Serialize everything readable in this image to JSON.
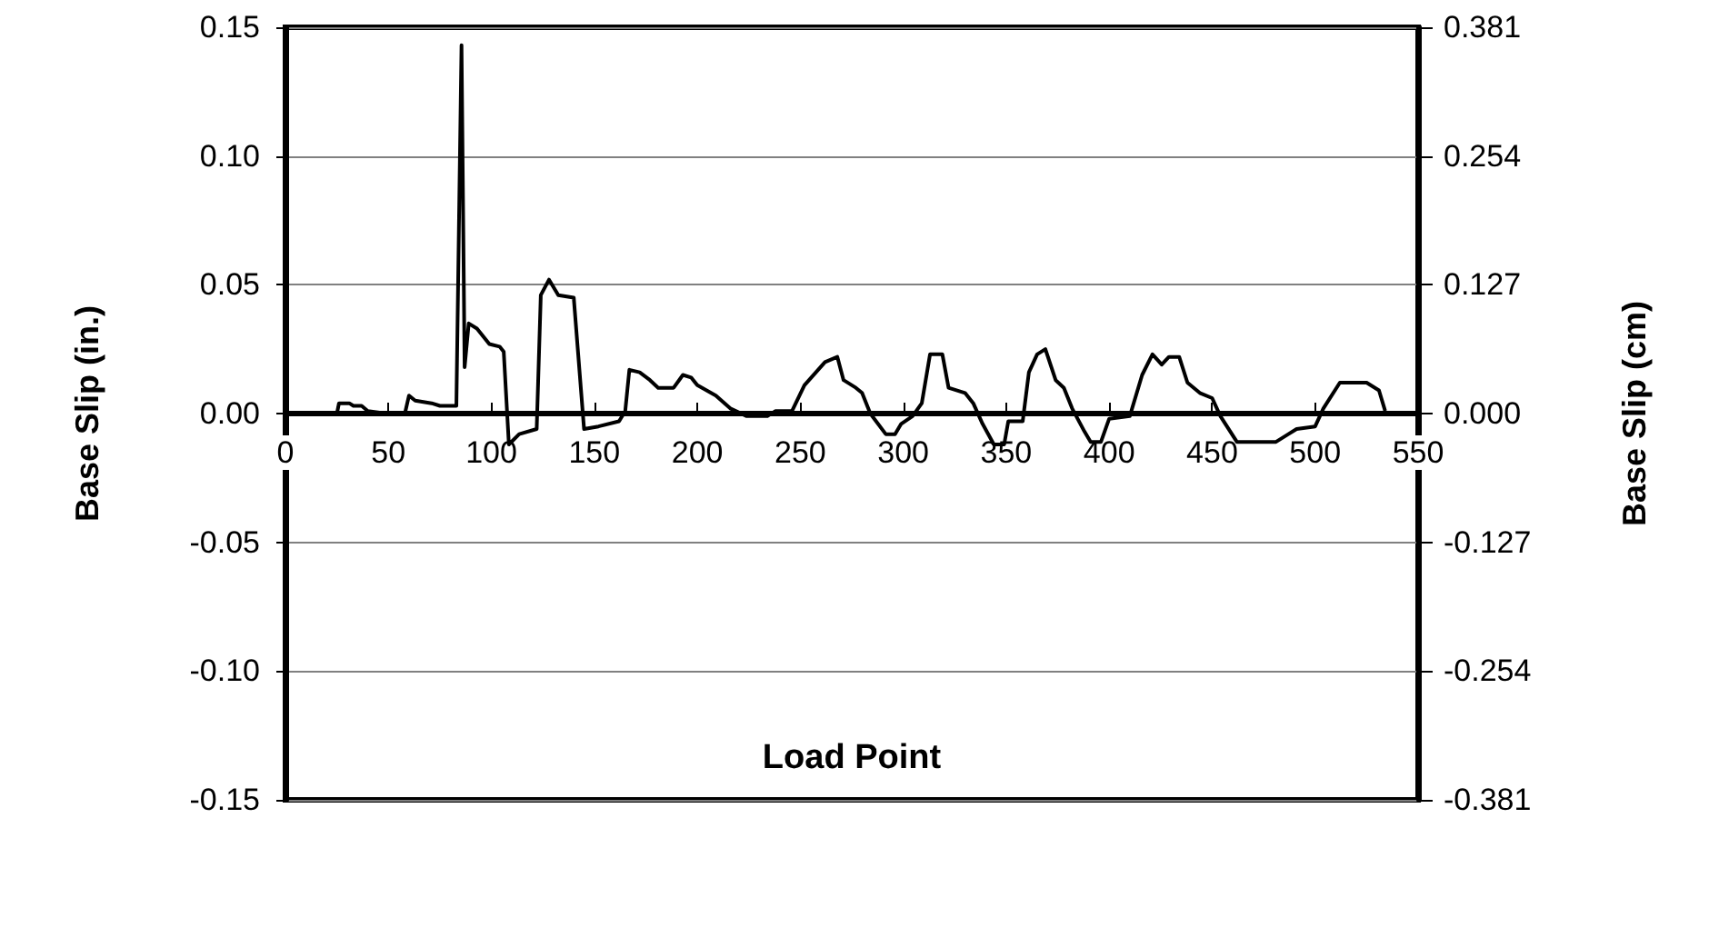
{
  "chart_data": {
    "type": "line",
    "xlabel": "Load Point",
    "ylabel": "Base Slip (in.)",
    "y2label": "Base Slip (cm)",
    "xlim": [
      0,
      550
    ],
    "xticks": [
      0,
      50,
      100,
      150,
      200,
      250,
      300,
      350,
      400,
      450,
      500,
      550
    ],
    "ylim": [
      -0.15,
      0.15
    ],
    "yticks": [
      {
        "value": -0.15,
        "label": "-0.15"
      },
      {
        "value": -0.1,
        "label": "-0.10"
      },
      {
        "value": -0.05,
        "label": "-0.05"
      },
      {
        "value": 0,
        "label": "0.00"
      },
      {
        "value": 0.05,
        "label": "0.05"
      },
      {
        "value": 0.1,
        "label": "0.10"
      },
      {
        "value": 0.15,
        "label": "0.15"
      }
    ],
    "y2lim": [
      -0.381,
      0.381
    ],
    "y2ticks": [
      -0.381,
      -0.254,
      -0.127,
      {
        "value": 0,
        "label": "0.000"
      },
      0.127,
      0.254,
      0.381
    ],
    "grid": "y",
    "marker": "none",
    "line_style": "solid",
    "series": [
      {
        "color": "#000000",
        "x": [
          2,
          25,
          26,
          31,
          33,
          37,
          40,
          49,
          58,
          60,
          63,
          71,
          75,
          78,
          83,
          85.5,
          87,
          89,
          93,
          99,
          104,
          106,
          108.5,
          113.5,
          122,
          124,
          128,
          132.5,
          140,
          145,
          152,
          162,
          165,
          167,
          172,
          177,
          181,
          188.5,
          193,
          197,
          200,
          209,
          216,
          224,
          234,
          238,
          246,
          252,
          262,
          268,
          271,
          277,
          280,
          284,
          291.5,
          296,
          299,
          304.5,
          309,
          313,
          319,
          322,
          330,
          334,
          338.5,
          344,
          349,
          351,
          358,
          361,
          365,
          369,
          374,
          378,
          382,
          388,
          391,
          396,
          400,
          410,
          416,
          421,
          425.5,
          429,
          434,
          438,
          444,
          450,
          454,
          462,
          481,
          487,
          491,
          500,
          504,
          512,
          525,
          531,
          534
        ],
        "values": [
          0,
          0,
          0.004,
          0.004,
          0.003,
          0.003,
          0.001,
          0,
          0,
          0.007,
          0.005,
          0.004,
          0.003,
          0.003,
          0.003,
          0.143,
          0.018,
          0.035,
          0.033,
          0.027,
          0.026,
          0.024,
          -0.012,
          -0.008,
          -0.006,
          0.046,
          0.052,
          0.046,
          0.045,
          -0.006,
          -0.005,
          -0.003,
          0.001,
          0.017,
          0.016,
          0.013,
          0.01,
          0.01,
          0.015,
          0.014,
          0.011,
          0.007,
          0.002,
          -0.001,
          -0.001,
          0.001,
          0.001,
          0.011,
          0.02,
          0.022,
          0.013,
          0.01,
          0.008,
          0,
          -0.008,
          -0.008,
          -0.004,
          -0.001,
          0.004,
          0.023,
          0.023,
          0.01,
          0.008,
          0.004,
          -0.004,
          -0.012,
          -0.012,
          -0.003,
          -0.003,
          0.016,
          0.023,
          0.025,
          0.013,
          0.01,
          0.002,
          -0.007,
          -0.011,
          -0.011,
          -0.002,
          -0.001,
          0.015,
          0.023,
          0.019,
          0.022,
          0.022,
          0.012,
          0.008,
          0.006,
          -0.001,
          -0.011,
          -0.011,
          -0.008,
          -0.006,
          -0.005,
          0.002,
          0.012,
          0.012,
          0.009,
          0.001
        ]
      }
    ]
  }
}
